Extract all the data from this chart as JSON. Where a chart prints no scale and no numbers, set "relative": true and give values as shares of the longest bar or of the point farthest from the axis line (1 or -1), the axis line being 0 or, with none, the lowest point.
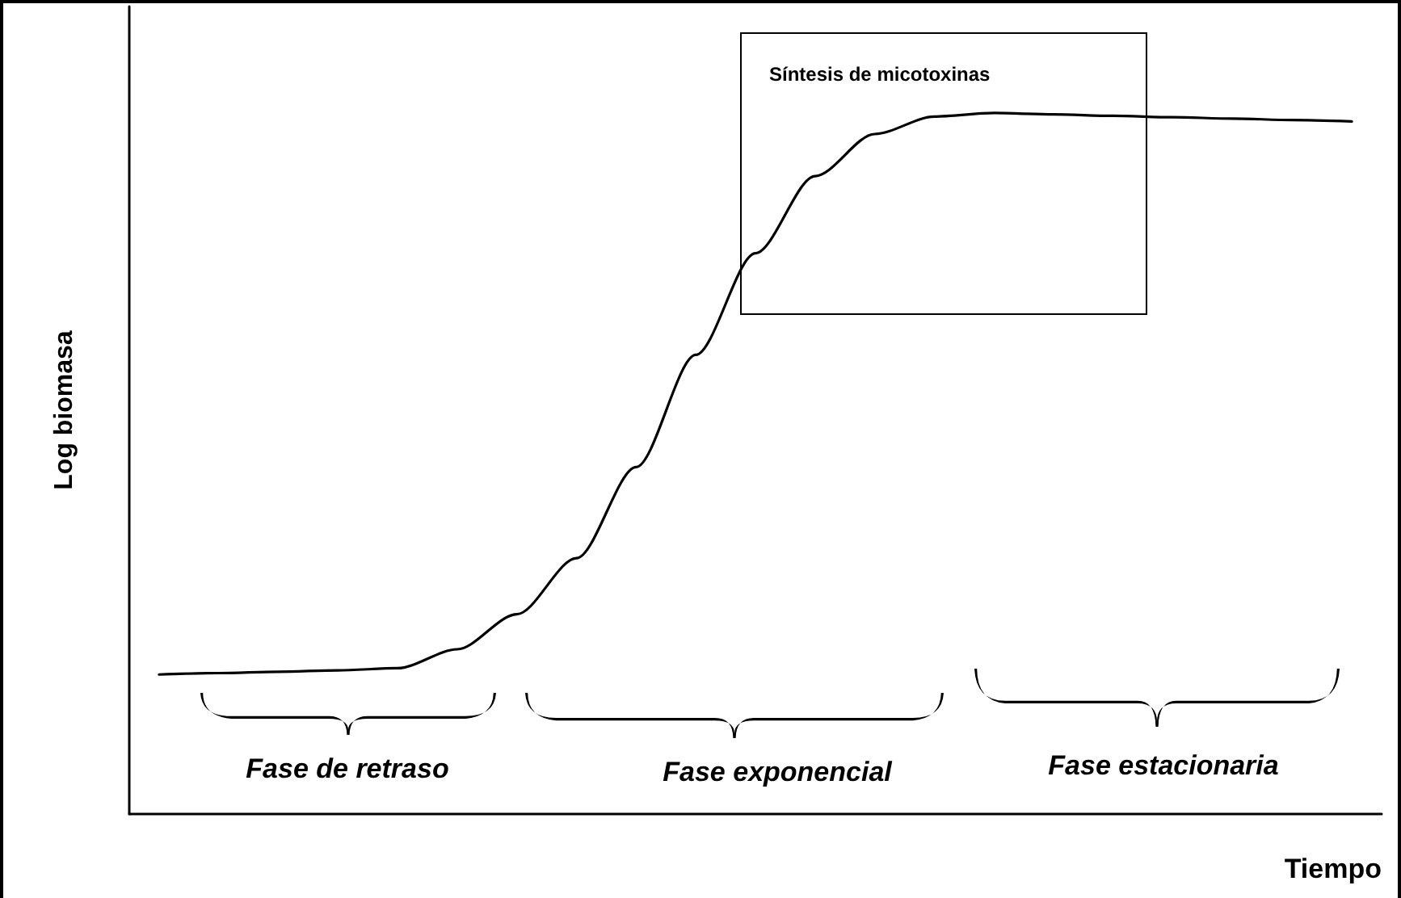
{
  "chart_data": {
    "type": "line",
    "relative": true,
    "xlabel": "Tiempo",
    "ylabel": "Log biomasa",
    "categories": [
      null,
      null,
      null,
      null,
      null,
      null,
      null,
      null,
      null,
      null,
      null,
      null,
      null,
      null,
      null,
      null,
      null,
      null,
      null,
      null,
      null
    ],
    "series": [
      {
        "color": "#000000",
        "values": [
          0.199,
          0.201,
          0.203,
          0.205,
          0.208,
          0.235,
          0.285,
          0.365,
          0.495,
          0.655,
          0.8,
          0.91,
          0.97,
          0.995,
          1,
          0.998,
          0.996,
          0.994,
          0.992,
          0.99,
          0.988
        ]
      }
    ],
    "annotations": [
      "Síntesis de micotoxinas",
      "Fase de retraso",
      "Fase exponencial",
      "Fase estacionaria"
    ],
    "marker": "none",
    "line_style": "solid",
    "grid": false
  }
}
